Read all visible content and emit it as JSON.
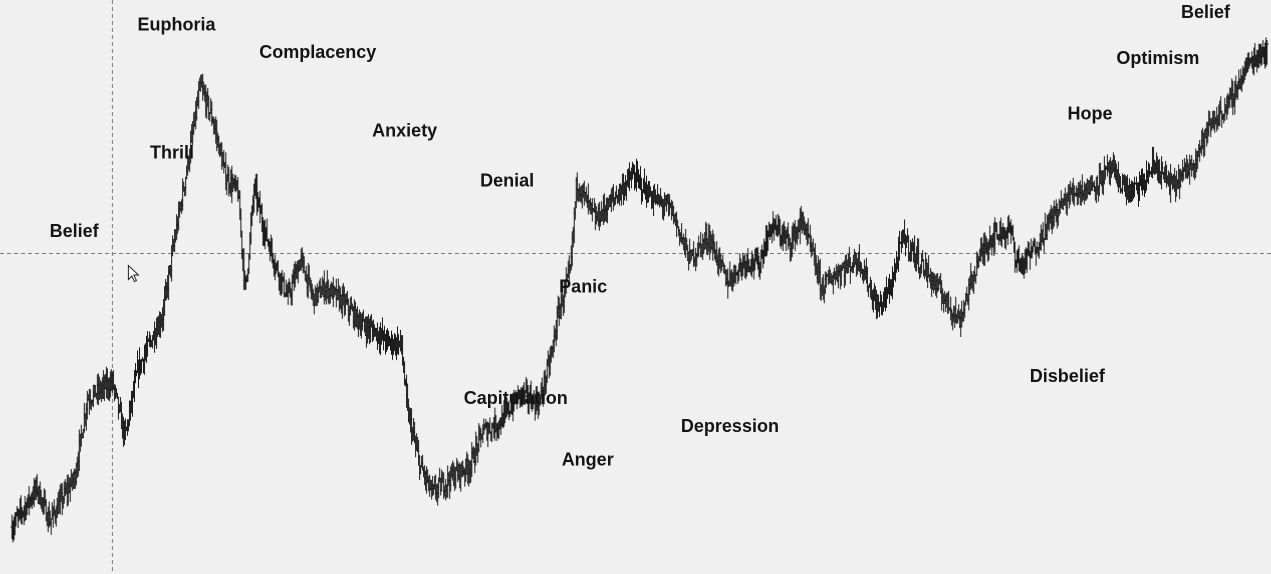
{
  "chart_data": {
    "type": "line",
    "style": "ohlc-bars",
    "title": "",
    "xlabel": "",
    "ylabel": "",
    "grid": false,
    "legend": "none",
    "x_range": [
      0,
      100
    ],
    "y_range": [
      0,
      100
    ],
    "series": [
      {
        "name": "",
        "color": "#1a1a1a",
        "x": [
          0,
          2,
          3,
          5,
          6,
          8,
          9,
          10,
          12,
          13,
          14,
          15,
          16,
          17,
          18,
          18.6,
          19.3,
          20,
          21,
          22,
          23,
          24,
          25,
          26.5,
          28,
          29,
          30,
          31,
          31.5,
          32.5,
          33.5,
          35,
          36.5,
          37.5,
          39,
          40.5,
          42,
          43,
          43.5,
          44.5,
          45,
          46.5,
          48,
          49.5,
          51,
          52.5,
          54,
          55.5,
          57,
          58.5,
          59.5,
          60.5,
          62,
          63,
          64.5,
          66,
          67.5,
          69,
          70,
          71,
          72.5,
          74,
          75.5,
          77,
          78,
          79,
          79.6,
          80,
          80.5,
          81.5,
          83,
          84.5,
          86,
          87.5,
          89,
          90,
          91,
          92.5,
          94,
          95.5,
          97,
          98.5,
          100
        ],
        "y": [
          7,
          14,
          8,
          16,
          30,
          33,
          23,
          35,
          45,
          59,
          72,
          86,
          80,
          70,
          67,
          49,
          68,
          61,
          54,
          48,
          55,
          48,
          50,
          47,
          43,
          42,
          40,
          40,
          28,
          18,
          13,
          16,
          18,
          24,
          26,
          31,
          29,
          38,
          45,
          53,
          69,
          62,
          66,
          70,
          66,
          64,
          55,
          59,
          51,
          55,
          54,
          61,
          58,
          62,
          50,
          53,
          55,
          46,
          50,
          59,
          54,
          49,
          44,
          55,
          59,
          60,
          60,
          55,
          54,
          57,
          63,
          67,
          68,
          71,
          67,
          68,
          72,
          68,
          72,
          79,
          83,
          90,
          93
        ]
      }
    ],
    "annotations": [
      {
        "text": "Belief",
        "x": 3,
        "y": 59
      },
      {
        "text": "Thrill",
        "x": 11,
        "y": 73
      },
      {
        "text": "Euphoria",
        "x": 10,
        "y": 96
      },
      {
        "text": "Complacency",
        "x": 19.7,
        "y": 91
      },
      {
        "text": "Anxiety",
        "x": 28.7,
        "y": 77
      },
      {
        "text": "Denial",
        "x": 37.3,
        "y": 68
      },
      {
        "text": "Panic",
        "x": 43.6,
        "y": 49
      },
      {
        "text": "Capitulation",
        "x": 36,
        "y": 29
      },
      {
        "text": "Anger",
        "x": 43.8,
        "y": 18
      },
      {
        "text": "Depression",
        "x": 53.3,
        "y": 24
      },
      {
        "text": "Disbelief",
        "x": 81.1,
        "y": 33
      },
      {
        "text": "Hope",
        "x": 84.1,
        "y": 80
      },
      {
        "text": "Optimism",
        "x": 88,
        "y": 90
      },
      {
        "text": "Belief",
        "x": 94.4,
        "y": 113
      }
    ]
  },
  "colors": {
    "background": "#f0f0f0",
    "price_bars": "#1a1a1a",
    "crosshair": "#7a7a7a",
    "text": "#141414"
  },
  "crosshair": {
    "x": 8,
    "y": 56
  },
  "cursor_icon": "arrow-cursor-icon"
}
